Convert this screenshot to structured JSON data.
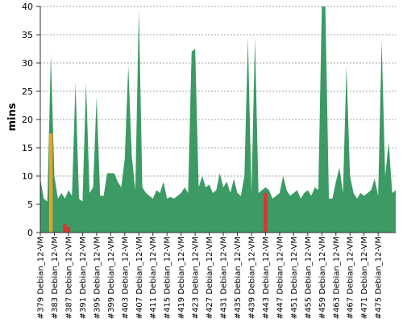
{
  "chart_data": {
    "type": "area",
    "title": "",
    "xlabel": "",
    "ylabel": "mins",
    "ylim": [
      0,
      40
    ],
    "yticks": [
      0,
      5,
      10,
      15,
      20,
      25,
      30,
      35,
      40
    ],
    "grid": "horizontal dashed",
    "x_tick_labels": [
      "#379 Debian_12-VM",
      "#383 Debian_12-VM",
      "#387 Debian_12-VM",
      "#391 Debian_12-VM",
      "#395 Debian_12-VM",
      "#399 Debian_12-VM",
      "#403 Debian_12-VM",
      "#407 Debian_12-VM",
      "#411 Debian_12-VM",
      "#415 Debian_12-VM",
      "#419 Debian_12-VM",
      "#423 Debian_12-VM",
      "#427 Debian_12-VM",
      "#431 Debian_12-VM",
      "#435 Debian_12-VM",
      "#439 Debian_12-VM",
      "#443 Debian_12-VM",
      "#447 Debian_12-VM",
      "#451 Debian_12-VM",
      "#455 Debian_12-VM",
      "#459 Debian_12-VM",
      "#463 Debian_12-VM",
      "#467 Debian_12-VM",
      "#471 Debian_12-VM",
      "#475 Debian_12-VM"
    ],
    "x_start": 379,
    "x_end": 476,
    "values": [
      9.5,
      6,
      5.5,
      31.5,
      10,
      6,
      7,
      6,
      7.5,
      6.5,
      26.5,
      6,
      5.5,
      26.5,
      7,
      8,
      24,
      6.5,
      6.5,
      10.5,
      10.5,
      10.5,
      9,
      8,
      13,
      29.5,
      13.5,
      7.5,
      39.5,
      8,
      7,
      6.5,
      6,
      7.5,
      7,
      9,
      6,
      6.3,
      6,
      6.5,
      7,
      8,
      7,
      32,
      32.5,
      8,
      10,
      8,
      8.5,
      7,
      7.5,
      10.5,
      8,
      9,
      7,
      9.5,
      7,
      6.5,
      10,
      34.5,
      7,
      34.5,
      7,
      7.5,
      8,
      7.5,
      6,
      6.5,
      7,
      10,
      7.5,
      6.5,
      7,
      7.5,
      6,
      7,
      7.5,
      6.5,
      8,
      7.5,
      41,
      41,
      6,
      6,
      9,
      11.5,
      7,
      29.5,
      10,
      7,
      6,
      7,
      6.5,
      7,
      7.5,
      9.5,
      6.5,
      34,
      10,
      16,
      7,
      7.5
    ],
    "status_bars": [
      {
        "x": 382,
        "value": 17.5,
        "status": "unstable",
        "color": "#f0a020"
      },
      {
        "x": 386,
        "value": 1.5,
        "status": "failed",
        "color": "#dd3333"
      },
      {
        "x": 387,
        "value": 1.0,
        "status": "failed",
        "color": "#dd3333"
      },
      {
        "x": 443,
        "value": 7.0,
        "status": "failed",
        "color": "#dd3333"
      }
    ],
    "fill_color": "#3c9a64",
    "baseline_color": "#2e6e49"
  }
}
